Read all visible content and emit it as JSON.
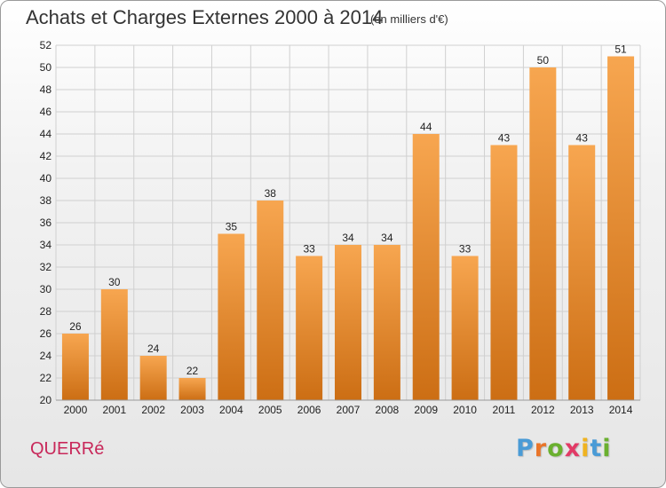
{
  "chart": {
    "title": "Achats et Charges Externes 2000 à 2014",
    "subtitle": "(en milliers d'€)"
  },
  "footer": {
    "commune": "QUERRé",
    "brand_letters": [
      "P",
      "r",
      "o",
      "x",
      "i",
      "t",
      "i"
    ],
    "brand_colors": [
      "#4a9bd6",
      "#e9752a",
      "#6ab02f",
      "#e23a66",
      "#f0b320",
      "#4a9bd6",
      "#6ab02f"
    ]
  },
  "colors": {
    "bar_top": "#f7a650",
    "bar_bottom": "#cc6e14",
    "grid": "#d0d0d0",
    "commune": "#c8285a"
  },
  "chart_data": {
    "type": "bar",
    "categories": [
      "2000",
      "2001",
      "2002",
      "2003",
      "2004",
      "2005",
      "2006",
      "2007",
      "2008",
      "2009",
      "2010",
      "2011",
      "2012",
      "2013",
      "2014"
    ],
    "values": [
      26,
      30,
      24,
      22,
      35,
      38,
      33,
      34,
      34,
      44,
      33,
      43,
      50,
      43,
      51
    ],
    "ylim": [
      20,
      52
    ],
    "yticks": [
      20,
      22,
      24,
      26,
      28,
      30,
      32,
      34,
      36,
      38,
      40,
      42,
      44,
      46,
      48,
      50,
      52
    ],
    "grid": true,
    "title": "Achats et Charges Externes 2000 à 2014",
    "subtitle": "(en milliers d'€)",
    "xlabel": "",
    "ylabel": ""
  }
}
